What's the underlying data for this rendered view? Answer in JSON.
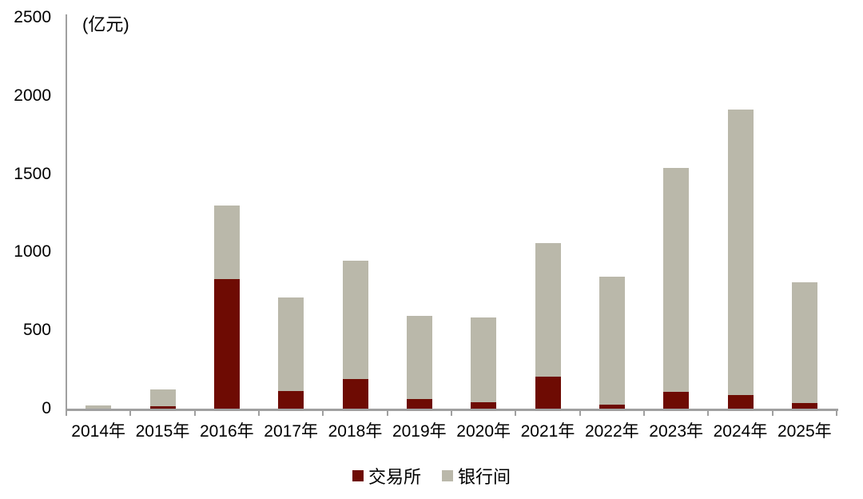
{
  "chart_data": {
    "type": "bar",
    "stacked": true,
    "title": "",
    "unit_label": "(亿元)",
    "categories": [
      "2014年",
      "2015年",
      "2016年",
      "2017年",
      "2018年",
      "2019年",
      "2020年",
      "2021年",
      "2022年",
      "2023年",
      "2024年",
      "2025年"
    ],
    "series": [
      {
        "name": "交易所",
        "color": "#6E0B03",
        "values": [
          0,
          15,
          830,
          110,
          190,
          60,
          40,
          205,
          25,
          105,
          85,
          35
        ]
      },
      {
        "name": "银行间",
        "color": "#BAB8AA",
        "values": [
          20,
          110,
          470,
          600,
          755,
          535,
          545,
          855,
          820,
          1435,
          1825,
          775
        ]
      }
    ],
    "totals": [
      20,
      125,
      1300,
      710,
      945,
      595,
      585,
      1060,
      845,
      1540,
      1910,
      810
    ],
    "ylim": [
      0,
      2500
    ],
    "yticks": [
      0,
      500,
      1000,
      1500,
      2000,
      2500
    ],
    "xlabel": "",
    "ylabel": "",
    "grid": false,
    "legend_position": "bottom",
    "axis_color": "#A0A0A0",
    "background_color": "#FFFFFF"
  }
}
